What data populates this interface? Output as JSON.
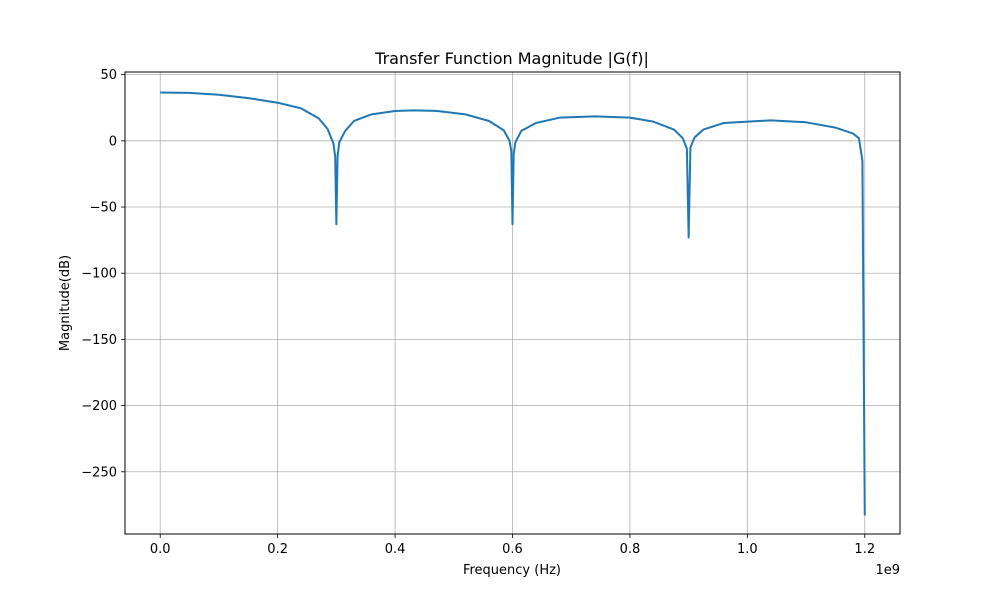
{
  "chart_data": {
    "type": "line",
    "title": "Transfer Function Magnitude |G(f)|",
    "xlabel": "Frequency (Hz)",
    "ylabel": "Magnitude(dB)",
    "x_offset_label": "1e9",
    "xlim": [
      -0.06,
      1.26
    ],
    "ylim": [
      -297,
      52
    ],
    "x_scale_note": "x values in units of 1e9 Hz",
    "xticks": [
      0.0,
      0.2,
      0.4,
      0.6,
      0.8,
      1.0,
      1.2
    ],
    "xtick_labels": [
      "0.0",
      "0.2",
      "0.4",
      "0.6",
      "0.8",
      "1.0",
      "1.2"
    ],
    "yticks": [
      50,
      0,
      -50,
      -100,
      -150,
      -200,
      -250
    ],
    "ytick_labels": [
      "50",
      "0",
      "−50",
      "−100",
      "−150",
      "−200",
      "−250"
    ],
    "grid": true,
    "series": [
      {
        "color": "#1f77b4",
        "x": [
          0.0,
          0.05,
          0.1,
          0.15,
          0.2,
          0.24,
          0.27,
          0.285,
          0.295,
          0.298,
          0.3,
          0.302,
          0.305,
          0.315,
          0.33,
          0.36,
          0.4,
          0.43,
          0.47,
          0.52,
          0.56,
          0.585,
          0.595,
          0.598,
          0.6,
          0.602,
          0.605,
          0.615,
          0.64,
          0.68,
          0.74,
          0.8,
          0.84,
          0.875,
          0.89,
          0.897,
          0.9,
          0.903,
          0.91,
          0.925,
          0.96,
          1.04,
          1.1,
          1.15,
          1.18,
          1.19,
          1.196,
          1.2
        ],
        "y": [
          36.5,
          36.2,
          34.8,
          32.3,
          28.8,
          24.5,
          17.0,
          9.0,
          -2.0,
          -12.0,
          -63.0,
          -12.0,
          -1.0,
          7.5,
          15.0,
          20.0,
          22.5,
          23.0,
          22.6,
          20.0,
          15.0,
          8.0,
          0.0,
          -8.0,
          -63.0,
          -10.0,
          -1.0,
          7.5,
          13.5,
          17.5,
          18.5,
          17.5,
          14.5,
          8.5,
          2.0,
          -6.0,
          -73.0,
          -5.0,
          2.5,
          8.5,
          13.5,
          15.5,
          14.0,
          10.0,
          5.5,
          2.0,
          -15.0,
          -283.0
        ]
      }
    ]
  }
}
